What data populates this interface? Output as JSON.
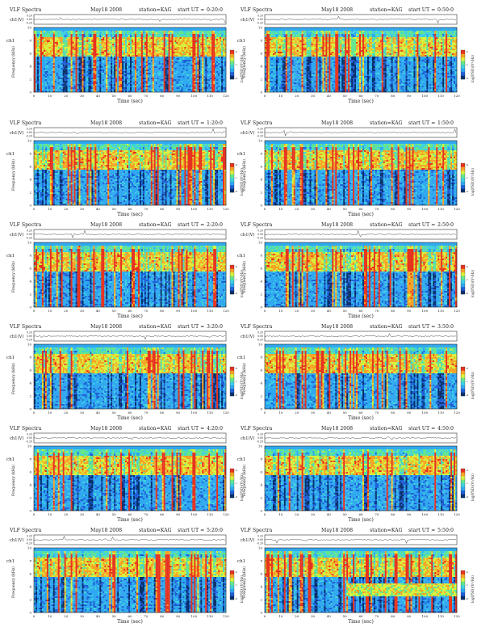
{
  "header": {
    "title": "VLF Spectra",
    "date": "May18 2008",
    "station": "station=KAG",
    "start_prefix": "start  UT =",
    "waveform_label": "ch1(V)",
    "spectrogram_label": "ch1",
    "yaxis_label": "Frequency  (kHz)",
    "xaxis_label": "Time  (sec)",
    "colorbar_label": "log(PSD)(V²/Hz)"
  },
  "palette": [
    "#08306b",
    "#1f5fd6",
    "#2fa8f0",
    "#3fd0e0",
    "#64e58c",
    "#d8f03c",
    "#f7a326",
    "#e6331f"
  ],
  "chart_data": [
    {
      "type": "heatmap",
      "start_time": "0:20:0",
      "x_range": [
        0,
        120
      ],
      "x_ticks": [
        0,
        10,
        20,
        30,
        40,
        50,
        60,
        70,
        80,
        90,
        100,
        110,
        120
      ],
      "y_range": [
        0,
        10
      ],
      "y_ticks": [
        0,
        2,
        4,
        6,
        8,
        10
      ],
      "waveform_ticks": [
        "0.20",
        "0.00",
        "-0.20"
      ],
      "colorbar_ticks": [
        "-6",
        "-7",
        "-8"
      ]
    },
    {
      "type": "heatmap",
      "start_time": "0:50:0",
      "x_range": [
        0,
        120
      ],
      "x_ticks": [
        0,
        10,
        20,
        30,
        40,
        50,
        60,
        70,
        80,
        90,
        100,
        110,
        120
      ],
      "y_range": [
        0,
        10
      ],
      "y_ticks": [
        0,
        2,
        4,
        6,
        8,
        10
      ],
      "waveform_ticks": [
        "0.20",
        "0.00",
        "-0.20"
      ],
      "colorbar_ticks": [
        "-6",
        "-7",
        "-8"
      ]
    },
    {
      "type": "heatmap",
      "start_time": "1:20:0",
      "x_range": [
        0,
        120
      ],
      "x_ticks": [
        0,
        10,
        20,
        30,
        40,
        50,
        60,
        70,
        80,
        90,
        100,
        110,
        120
      ],
      "y_range": [
        0,
        10
      ],
      "y_ticks": [
        0,
        2,
        4,
        6,
        8,
        10
      ],
      "waveform_ticks": [
        "0.20",
        "0.00",
        "-0.20"
      ],
      "colorbar_ticks": [
        "-6",
        "-7",
        "-8"
      ]
    },
    {
      "type": "heatmap",
      "start_time": "1:50:0",
      "x_range": [
        0,
        120
      ],
      "x_ticks": [
        0,
        10,
        20,
        30,
        40,
        50,
        60,
        70,
        80,
        90,
        100,
        110,
        120
      ],
      "y_range": [
        0,
        10
      ],
      "y_ticks": [
        0,
        2,
        4,
        6,
        8,
        10
      ],
      "waveform_ticks": [
        "0.20",
        "0.00",
        "-0.20"
      ],
      "colorbar_ticks": [
        "-6",
        "-7",
        "-8"
      ]
    },
    {
      "type": "heatmap",
      "start_time": "2:20:0",
      "x_range": [
        0,
        120
      ],
      "x_ticks": [
        0,
        10,
        20,
        30,
        40,
        50,
        60,
        70,
        80,
        90,
        100,
        110,
        120
      ],
      "y_range": [
        0,
        10
      ],
      "y_ticks": [
        0,
        2,
        4,
        6,
        8,
        10
      ],
      "waveform_ticks": [
        "0.20",
        "0.00",
        "-0.20"
      ],
      "colorbar_ticks": [
        "-6",
        "-7",
        "-8"
      ]
    },
    {
      "type": "heatmap",
      "start_time": "2:50:0",
      "x_range": [
        0,
        120
      ],
      "x_ticks": [
        0,
        10,
        20,
        30,
        40,
        50,
        60,
        70,
        80,
        90,
        100,
        110,
        120
      ],
      "y_range": [
        0,
        10
      ],
      "y_ticks": [
        0,
        2,
        4,
        6,
        8,
        10
      ],
      "waveform_ticks": [
        "0.20",
        "0.00",
        "-0.20"
      ],
      "colorbar_ticks": [
        "-6",
        "-7",
        "-8"
      ]
    },
    {
      "type": "heatmap",
      "start_time": "3:20:0",
      "x_range": [
        0,
        120
      ],
      "x_ticks": [
        0,
        10,
        20,
        30,
        40,
        50,
        60,
        70,
        80,
        90,
        100,
        110,
        120
      ],
      "y_range": [
        0,
        10
      ],
      "y_ticks": [
        0,
        2,
        4,
        6,
        8,
        10
      ],
      "waveform_ticks": [
        "0.20",
        "0.00",
        "-0.20"
      ],
      "colorbar_ticks": [
        "-6",
        "-7",
        "-8"
      ]
    },
    {
      "type": "heatmap",
      "start_time": "3:50:0",
      "x_range": [
        0,
        120
      ],
      "x_ticks": [
        0,
        10,
        20,
        30,
        40,
        50,
        60,
        70,
        80,
        90,
        100,
        110,
        120
      ],
      "y_range": [
        0,
        10
      ],
      "y_ticks": [
        0,
        2,
        4,
        6,
        8,
        10
      ],
      "waveform_ticks": [
        "0.20",
        "0.00",
        "-0.20"
      ],
      "colorbar_ticks": [
        "-6",
        "-7",
        "-8"
      ]
    },
    {
      "type": "heatmap",
      "start_time": "4:20:0",
      "x_range": [
        0,
        120
      ],
      "x_ticks": [
        0,
        10,
        20,
        30,
        40,
        50,
        60,
        70,
        80,
        90,
        100,
        110,
        120
      ],
      "y_range": [
        0,
        10
      ],
      "y_ticks": [
        0,
        2,
        4,
        6,
        8,
        10
      ],
      "waveform_ticks": [
        "0.20",
        "0.00",
        "-0.20"
      ],
      "colorbar_ticks": [
        "-6",
        "-7",
        "-8"
      ]
    },
    {
      "type": "heatmap",
      "start_time": "4:50:0",
      "x_range": [
        0,
        120
      ],
      "x_ticks": [
        0,
        10,
        20,
        30,
        40,
        50,
        60,
        70,
        80,
        90,
        100,
        110,
        120
      ],
      "y_range": [
        0,
        10
      ],
      "y_ticks": [
        0,
        2,
        4,
        6,
        8,
        10
      ],
      "waveform_ticks": [
        "0.20",
        "0.00",
        "-0.20"
      ],
      "colorbar_ticks": [
        "-6",
        "-7",
        "-8"
      ]
    },
    {
      "type": "heatmap",
      "start_time": "5:20:0",
      "x_range": [
        0,
        120
      ],
      "x_ticks": [
        0,
        10,
        20,
        30,
        40,
        50,
        60,
        70,
        80,
        90,
        100,
        110,
        120
      ],
      "y_range": [
        0,
        10
      ],
      "y_ticks": [
        0,
        2,
        4,
        6,
        8,
        10
      ],
      "waveform_ticks": [
        "0.20",
        "0.00",
        "-0.20"
      ],
      "colorbar_ticks": [
        "-6",
        "-7",
        "-8"
      ]
    },
    {
      "type": "heatmap",
      "start_time": "5:50:0",
      "x_range": [
        0,
        120
      ],
      "x_ticks": [
        0,
        10,
        20,
        30,
        40,
        50,
        60,
        70,
        80,
        90,
        100,
        110,
        120
      ],
      "y_range": [
        0,
        10
      ],
      "y_ticks": [
        0,
        2,
        4,
        6,
        8,
        10
      ],
      "waveform_ticks": [
        "0.20",
        "0.00",
        "-0.20"
      ],
      "colorbar_ticks": [
        "-6",
        "-7",
        "-8"
      ]
    }
  ]
}
